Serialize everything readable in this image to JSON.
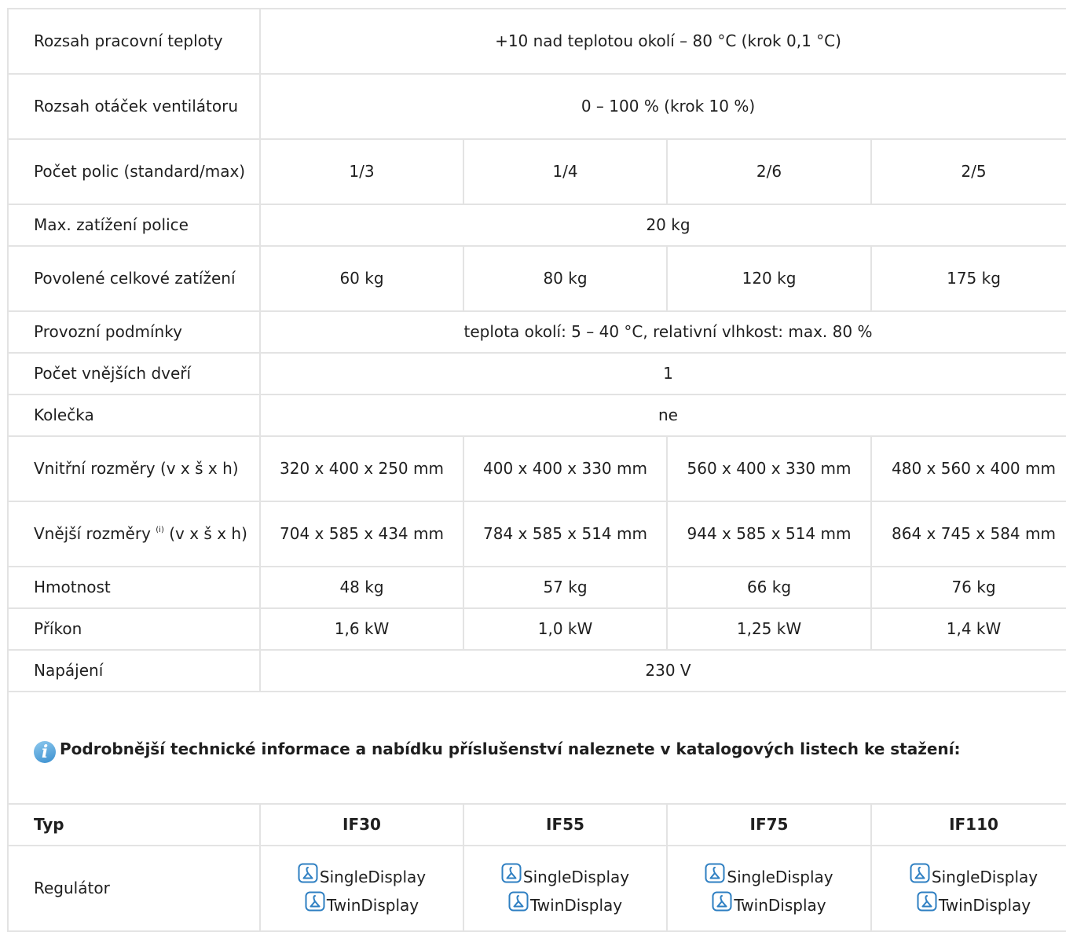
{
  "rows": {
    "temp_range": {
      "label": "Rozsah pracovní teploty",
      "value": "+10 nad teplotou okolí – 80 °C (krok 0,1 °C)"
    },
    "fan_speed": {
      "label": "Rozsah otáček ventilátoru",
      "value": "0 – 100 % (krok 10 %)"
    },
    "shelves": {
      "label": "Počet polic (standard/max)",
      "values": [
        "1/3",
        "1/4",
        "2/6",
        "2/5"
      ]
    },
    "shelf_load": {
      "label": "Max. zatížení police",
      "value": "20 kg"
    },
    "total_load": {
      "label": "Povolené celkové zatížení",
      "values": [
        "60 kg",
        "80 kg",
        "120 kg",
        "175 kg"
      ]
    },
    "conditions": {
      "label": "Provozní podmínky",
      "value": "teplota okolí: 5 – 40 °C, relativní vlhkost: max. 80 %"
    },
    "doors": {
      "label": "Počet vnějších dveří",
      "value": "1"
    },
    "wheels": {
      "label": "Kolečka",
      "value": "ne"
    },
    "inner_dims": {
      "label": "Vnitřní rozměry (v x š x h)",
      "values": [
        "320 x 400 x 250 mm",
        "400 x 400 x 330 mm",
        "560 x 400 x 330 mm",
        "480 x 560 x 400 mm"
      ]
    },
    "outer_dims": {
      "label_pre": "Vnější rozměry ",
      "label_sup": "(i)",
      "label_post": " (v x š x h)",
      "values": [
        "704 x 585 x 434 mm",
        "784 x 585 x 514 mm",
        "944 x 585 x 514 mm",
        "864 x 745 x 584 mm"
      ]
    },
    "weight": {
      "label": "Hmotnost",
      "values": [
        "48 kg",
        "57 kg",
        "66 kg",
        "76 kg"
      ]
    },
    "power": {
      "label": "Příkon",
      "values": [
        "1,6 kW",
        "1,0 kW",
        "1,25 kW",
        "1,4 kW"
      ]
    },
    "supply": {
      "label": "Napájení",
      "value": "230 V"
    }
  },
  "info": {
    "icon": "info-icon",
    "text": "Podrobnější technické informace a nabídku příslušenství naleznete v katalogových listech ke stažení:"
  },
  "downloads": {
    "type_label": "Typ",
    "models": [
      "IF30",
      "IF55",
      "IF75",
      "IF110"
    ],
    "row_label": "Regulátor",
    "icon": "pdf-icon",
    "links": [
      "SingleDisplay",
      "TwinDisplay"
    ]
  }
}
